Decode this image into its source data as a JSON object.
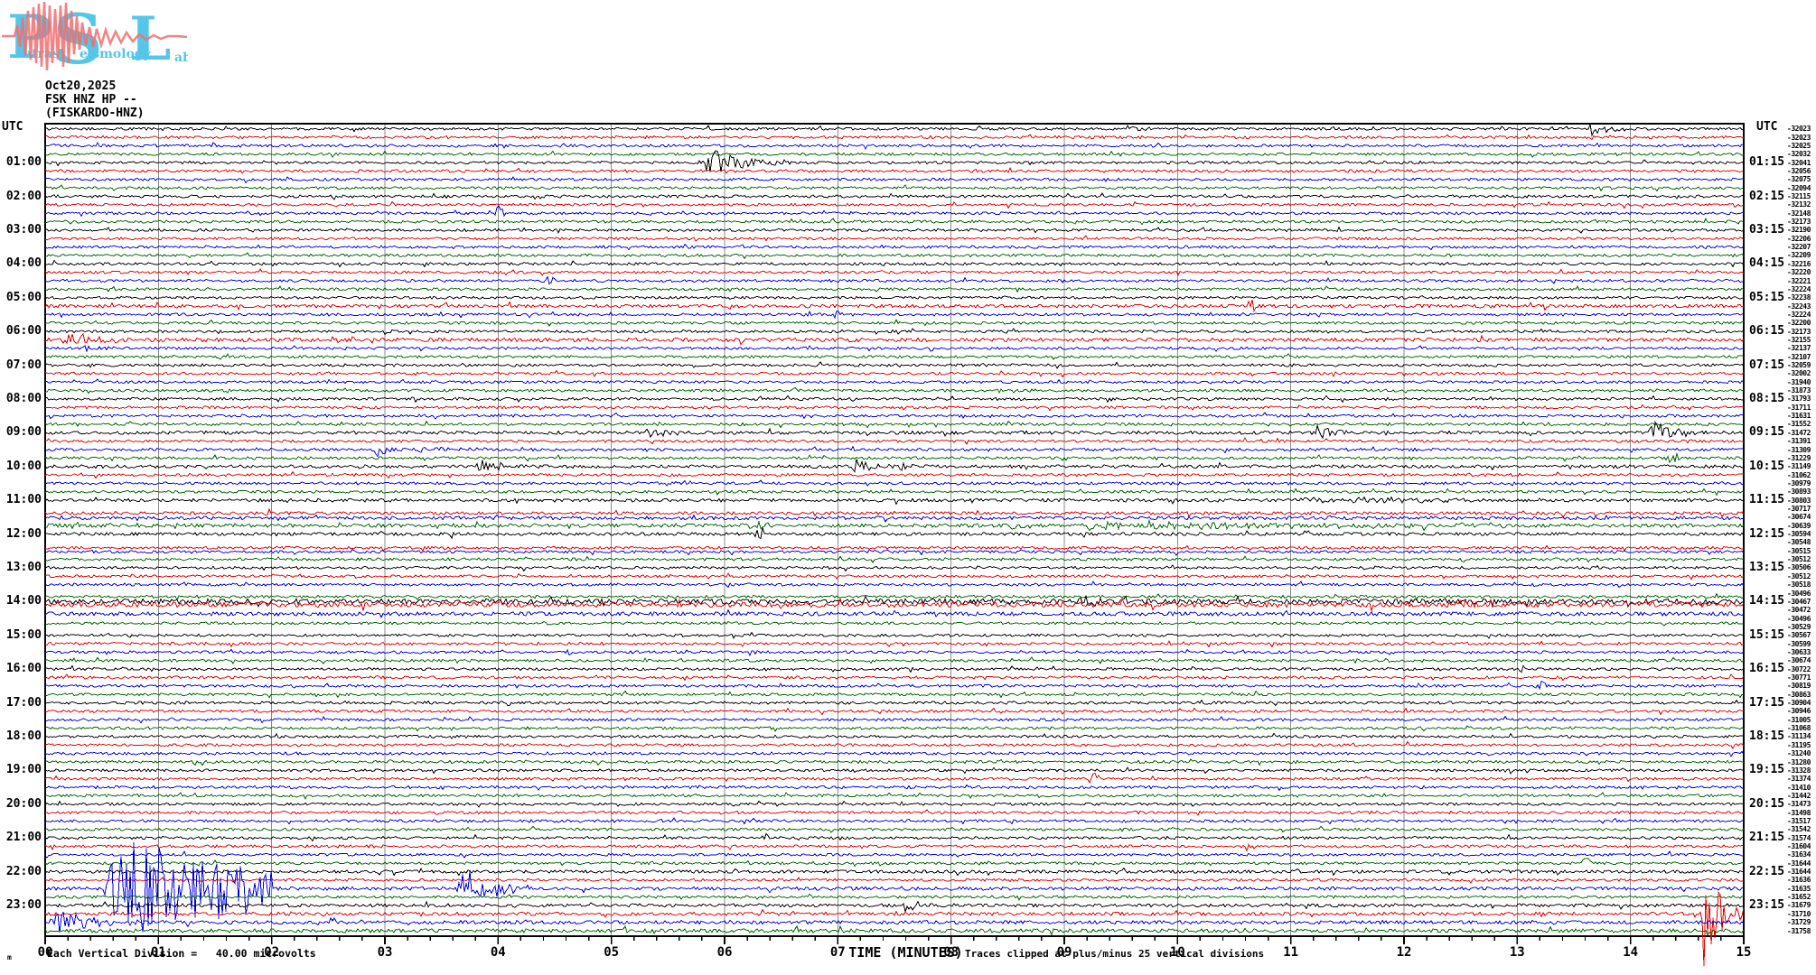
{
  "logo": {
    "letters": [
      "P",
      "S",
      "L"
    ],
    "words": [
      "atras",
      "eismology",
      "ab"
    ],
    "letter_color": "#55c6e8",
    "wave_color": "#f26d6d"
  },
  "header": {
    "date": "Oct20,2025",
    "station_line": "FSK HNZ HP --",
    "station_name": "(FISKARDO-HNZ)"
  },
  "axes": {
    "utc_left": "UTC",
    "utc_right": "UTC",
    "x_label": "TIME (MINUTES)"
  },
  "footer": {
    "left_note": "Each Vertical Division =   40.00 microvolts",
    "clip_note": "Traces clipped at plus/minus 25 vertical divisions",
    "corner_mark": "m"
  },
  "chart_data": {
    "type": "line",
    "subtype": "seismogram-helicorder",
    "title": "FSK HNZ HP -- (FISKARDO-HNZ) Oct20,2025",
    "minutes_per_line": 15,
    "lines_per_hour": 4,
    "total_lines": 96,
    "xlabel": "TIME (MINUTES)",
    "x_ticks": [
      "00",
      "01",
      "02",
      "03",
      "04",
      "05",
      "06",
      "07",
      "08",
      "09",
      "10",
      "11",
      "12",
      "13",
      "14",
      "15"
    ],
    "grid_on": true,
    "grid_color": "#8c8c8c",
    "trace_color_cycle": [
      "#000000",
      "#e60000",
      "#0000e6",
      "#006600"
    ],
    "left_hour_labels": [
      "01:00",
      "02:00",
      "03:00",
      "04:00",
      "05:00",
      "06:00",
      "07:00",
      "08:00",
      "09:00",
      "10:00",
      "11:00",
      "12:00",
      "13:00",
      "14:00",
      "15:00",
      "16:00",
      "17:00",
      "18:00",
      "19:00",
      "20:00",
      "21:00",
      "22:00",
      "23:00"
    ],
    "right_hour_labels": [
      "01:15",
      "02:15",
      "03:15",
      "04:15",
      "05:15",
      "06:15",
      "07:15",
      "08:15",
      "09:15",
      "10:15",
      "11:15",
      "12:15",
      "13:15",
      "14:15",
      "15:15",
      "16:15",
      "17:15",
      "18:15",
      "19:15",
      "20:15",
      "21:15",
      "22:15",
      "23:15"
    ],
    "right_trace_values": [
      -32023,
      -32023,
      -32025,
      -32032,
      -32041,
      -32056,
      -32075,
      -32094,
      -32115,
      -32132,
      -32148,
      -32173,
      -32190,
      -32206,
      -32207,
      -32209,
      -32216,
      -32220,
      -32221,
      -32224,
      -32238,
      -32243,
      -32224,
      -32200,
      -32173,
      -32155,
      -32137,
      -32107,
      -32059,
      -32002,
      -31940,
      -31873,
      -31793,
      -31711,
      -31631,
      -31552,
      -31472,
      -31391,
      -31309,
      -31229,
      -31149,
      -31062,
      -30979,
      -30893,
      -30803,
      -30717,
      -30674,
      -30639,
      -30594,
      -30548,
      -30515,
      -30512,
      -30506,
      -30512,
      -30518,
      -30496,
      -30467,
      -30472,
      -30496,
      -30529,
      -30567,
      -30599,
      -30633,
      -30674,
      -30722,
      -30771,
      -30819,
      -30863,
      -30904,
      -30946,
      -31005,
      -31068,
      -31134,
      -31195,
      -31240,
      -31280,
      -31328,
      -31374,
      -31410,
      -31442,
      -31473,
      -31498,
      -31517,
      -31542,
      -31574,
      -31604,
      -31634,
      -31644,
      -31644,
      -31636,
      -31635,
      -31652,
      -31679,
      -31710,
      -31729,
      -31758
    ],
    "noise_amp_default": 1.4,
    "noise_amp_overrides": {
      "21": 1.8,
      "25": 2.0,
      "36": 1.7,
      "40": 1.7,
      "44": 1.7,
      "45": 1.7,
      "46": 1.7,
      "47": 2.0,
      "48": 1.7,
      "56": 2.8,
      "57": 2.8,
      "58": 2.2,
      "88": 1.7,
      "90": 1.8,
      "92": 1.7,
      "93": 1.8,
      "94": 1.9,
      "95": 2.0
    },
    "row_offsets": {
      "45": 5,
      "46": 1,
      "49": 6,
      "50": 1,
      "55": 4,
      "57": -6,
      "58": -5,
      "59": -4
    },
    "events": [
      {
        "row": 0,
        "t": 9.55,
        "dur": 0.25,
        "amp": 4,
        "kind": "burst"
      },
      {
        "row": 0,
        "t": 13.6,
        "dur": 0.45,
        "amp": 8,
        "kind": "burst"
      },
      {
        "row": 4,
        "t": 5.75,
        "dur": 0.9,
        "amp": 18,
        "kind": "burst"
      },
      {
        "row": 10,
        "t": 3.95,
        "dur": 0.12,
        "amp": 8,
        "kind": "spike"
      },
      {
        "row": 18,
        "t": 4.4,
        "dur": 0.12,
        "amp": 7,
        "kind": "spike"
      },
      {
        "row": 21,
        "t": 10.6,
        "dur": 0.15,
        "amp": 7,
        "kind": "spike"
      },
      {
        "row": 22,
        "t": 6.95,
        "dur": 0.1,
        "amp": 5,
        "kind": "spike"
      },
      {
        "row": 25,
        "t": 0.1,
        "dur": 0.9,
        "amp": 8,
        "kind": "burst"
      },
      {
        "row": 26,
        "t": 0.3,
        "dur": 0.4,
        "amp": 4,
        "kind": "burst"
      },
      {
        "row": 36,
        "t": 5.3,
        "dur": 0.4,
        "amp": 8,
        "kind": "burst"
      },
      {
        "row": 36,
        "t": 11.15,
        "dur": 0.45,
        "amp": 9,
        "kind": "burst"
      },
      {
        "row": 36,
        "t": 14.15,
        "dur": 0.5,
        "amp": 13,
        "kind": "burst"
      },
      {
        "row": 38,
        "t": 2.9,
        "dur": 0.22,
        "amp": 10,
        "kind": "burst"
      },
      {
        "row": 38,
        "t": 3.2,
        "dur": 1.1,
        "amp": 3,
        "kind": "burst"
      },
      {
        "row": 39,
        "t": 14.3,
        "dur": 0.15,
        "amp": 8,
        "kind": "spike"
      },
      {
        "row": 40,
        "t": 3.8,
        "dur": 0.28,
        "amp": 11,
        "kind": "burst"
      },
      {
        "row": 40,
        "t": 4.0,
        "dur": 0.15,
        "amp": 7,
        "kind": "burst"
      },
      {
        "row": 40,
        "t": 7.1,
        "dur": 0.5,
        "amp": 9,
        "kind": "burst"
      },
      {
        "row": 40,
        "t": 7.5,
        "dur": 0.3,
        "amp": 8,
        "kind": "burst"
      },
      {
        "row": 42,
        "t": 5.45,
        "dur": 0.45,
        "amp": 4,
        "kind": "burst"
      },
      {
        "row": 44,
        "t": 11.0,
        "dur": 1.6,
        "amp": 3.5,
        "kind": "burst"
      },
      {
        "row": 47,
        "t": 6.2,
        "dur": 0.5,
        "amp": 5,
        "kind": "burst"
      },
      {
        "row": 47,
        "t": 8.5,
        "dur": 0.35,
        "amp": 6,
        "kind": "burst"
      },
      {
        "row": 47,
        "t": 8.9,
        "dur": 4.0,
        "amp": 3.5,
        "kind": "burst"
      },
      {
        "row": 48,
        "t": 6.25,
        "dur": 0.12,
        "amp": 8,
        "kind": "spike"
      },
      {
        "row": 56,
        "t": 9.1,
        "dur": 0.45,
        "amp": 8,
        "kind": "burst"
      },
      {
        "row": 59,
        "t": 4.38,
        "dur": 0.1,
        "amp": 6,
        "kind": "spike"
      },
      {
        "row": 62,
        "t": 4.6,
        "dur": 0.15,
        "amp": 7,
        "kind": "burst"
      },
      {
        "row": 64,
        "t": 13.0,
        "dur": 0.1,
        "amp": 7,
        "kind": "spike"
      },
      {
        "row": 66,
        "t": 13.15,
        "dur": 0.12,
        "amp": 7,
        "kind": "spike"
      },
      {
        "row": 77,
        "t": 9.2,
        "dur": 0.12,
        "amp": 8,
        "kind": "spike"
      },
      {
        "row": 84,
        "t": 6.3,
        "dur": 0.1,
        "amp": 7,
        "kind": "spike"
      },
      {
        "row": 85,
        "t": 10.55,
        "dur": 0.3,
        "amp": 6,
        "kind": "burst"
      },
      {
        "row": 87,
        "t": 13.55,
        "dur": 0.12,
        "amp": 6,
        "kind": "spike"
      },
      {
        "row": 90,
        "t": 0.5,
        "dur": 1.5,
        "amp": 58,
        "kind": "burst"
      },
      {
        "row": 90,
        "t": 3.6,
        "dur": 0.7,
        "amp": 26,
        "kind": "burst"
      },
      {
        "row": 92,
        "t": 7.55,
        "dur": 0.35,
        "amp": 8,
        "kind": "burst"
      },
      {
        "row": 93,
        "t": 14.6,
        "dur": 0.42,
        "amp": 64,
        "kind": "burst"
      },
      {
        "row": 94,
        "t": 0.0,
        "dur": 1.1,
        "amp": 12,
        "kind": "burst"
      }
    ]
  }
}
